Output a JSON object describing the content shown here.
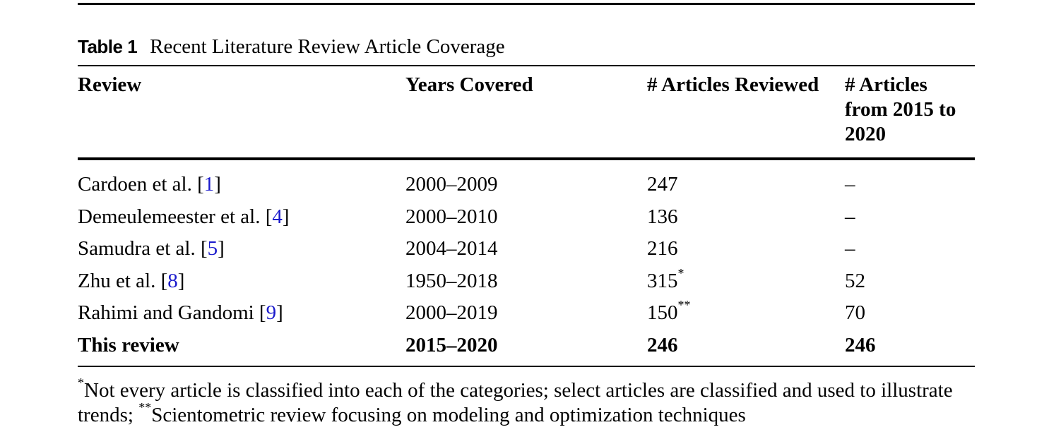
{
  "caption": {
    "label": "Table 1",
    "title": "Recent Literature Review Article Coverage"
  },
  "headers": {
    "review": "Review",
    "years": "Years Covered",
    "articles": "# Articles Reviewed",
    "recent": "# Articles from 2015 to 2020"
  },
  "rows": [
    {
      "author": "Cardoen et al. [",
      "ref": "1",
      "close": "]",
      "years": "2000–2009",
      "articles": "247",
      "sup": "",
      "recent": "–"
    },
    {
      "author": "Demeulemeester et al. [",
      "ref": "4",
      "close": "]",
      "years": "2000–2010",
      "articles": "136",
      "sup": "",
      "recent": "–"
    },
    {
      "author": "Samudra et al. [",
      "ref": "5",
      "close": "]",
      "years": "2004–2014",
      "articles": "216",
      "sup": "",
      "recent": "–"
    },
    {
      "author": "Zhu et al. [",
      "ref": "8",
      "close": "]",
      "years": "1950–2018",
      "articles": "315",
      "sup": "*",
      "recent": "52"
    },
    {
      "author": "Rahimi and Gandomi [",
      "ref": "9",
      "close": "]",
      "years": "2000–2019",
      "articles": "150",
      "sup": "**",
      "recent": "70"
    }
  ],
  "summary_row": {
    "author": "This review",
    "years": "2015–2020",
    "articles": "246",
    "recent": "246"
  },
  "footnote": {
    "mark1": "*",
    "text1": "Not every article is classified into each of the categories; select articles are classified and used to illustrate trends; ",
    "mark2": "**",
    "text2": "Scientometric review focusing on modeling and optimization techniques"
  },
  "colors": {
    "reference_link": "#1a1acc"
  }
}
